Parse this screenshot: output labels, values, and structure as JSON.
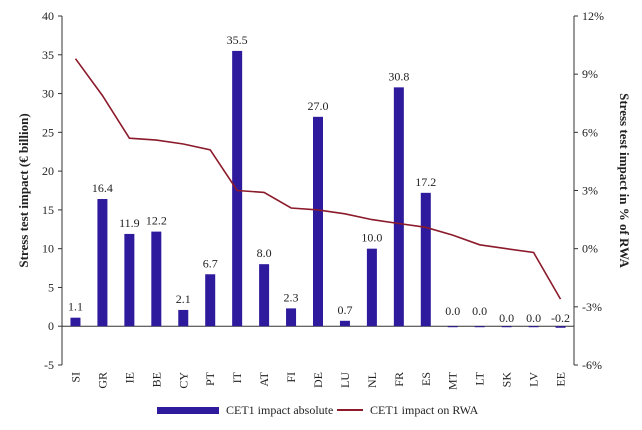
{
  "chart_data": {
    "type": "bar+line",
    "categories": [
      "SI",
      "GR",
      "IE",
      "BE",
      "CY",
      "PT",
      "IT",
      "AT",
      "FI",
      "DE",
      "LU",
      "NL",
      "FR",
      "ES",
      "MT",
      "LT",
      "SK",
      "LV",
      "EE"
    ],
    "series": [
      {
        "name": "CET1 impact absolute",
        "type": "bar",
        "axis": "left",
        "color": "#2e1a9c",
        "values": [
          1.1,
          16.4,
          11.9,
          12.2,
          2.1,
          6.7,
          35.5,
          8.0,
          2.3,
          27.0,
          0.7,
          10.0,
          30.8,
          17.2,
          0.0,
          0.0,
          0.0,
          0.0,
          -0.2
        ],
        "labels": [
          "1.1",
          "16.4",
          "11.9",
          "12.2",
          "2.1",
          "6.7",
          "35.5",
          "8.0",
          "2.3",
          "27.0",
          "0.7",
          "10.0",
          "30.8",
          "17.2",
          "0.0",
          "0.0",
          "0.0",
          "0.0",
          "-0.2"
        ]
      },
      {
        "name": "CET1 impact on RWA",
        "type": "line",
        "axis": "right",
        "color": "#8b1a2b",
        "values": [
          9.8,
          7.9,
          5.7,
          5.6,
          5.4,
          5.1,
          3.0,
          2.9,
          2.1,
          2.0,
          1.8,
          1.5,
          1.3,
          1.1,
          0.7,
          0.2,
          0.0,
          -0.2,
          -2.6
        ]
      }
    ],
    "y_left": {
      "title": "Stress test impact (€ billion)",
      "ylim": [
        -5,
        40
      ],
      "ticks": [
        -5,
        0,
        5,
        10,
        15,
        20,
        25,
        30,
        35,
        40
      ],
      "tick_labels": [
        "-5",
        "0",
        "5",
        "10",
        "15",
        "20",
        "25",
        "30",
        "35",
        "40"
      ]
    },
    "y_right": {
      "title": "Stress test impact in % of RWA",
      "ylim": [
        -6,
        12
      ],
      "ticks": [
        -6,
        -3,
        0,
        3,
        6,
        9,
        12
      ],
      "tick_labels": [
        "-6%",
        "-3%",
        "0%",
        "3%",
        "6%",
        "9%",
        "12%"
      ]
    },
    "legend": {
      "position": "bottom",
      "entries": [
        "CET1 impact absolute",
        "CET1 impact on RWA"
      ]
    },
    "grid": false
  }
}
